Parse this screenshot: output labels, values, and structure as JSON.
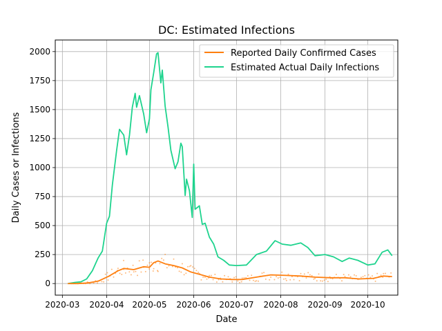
{
  "chart_data": {
    "type": "line",
    "title": "DC: Estimated Infections",
    "xlabel": "Date",
    "ylabel": "Daily Cases or Infections",
    "xlim": [
      "2020-02-25",
      "2020-10-22"
    ],
    "ylim": [
      -100,
      2100
    ],
    "x_ticks": [
      "2020-03",
      "2020-04",
      "2020-05",
      "2020-06",
      "2020-07",
      "2020-08",
      "2020-09",
      "2020-10"
    ],
    "y_ticks": [
      0,
      250,
      500,
      750,
      1000,
      1250,
      1500,
      1750,
      2000
    ],
    "grid": true,
    "legend_position": "top-right",
    "series": [
      {
        "name": "Reported Daily Confirmed Cases",
        "color": "#ff7f0e",
        "points": [
          [
            "2020-03-05",
            0
          ],
          [
            "2020-03-12",
            0
          ],
          [
            "2020-03-19",
            5
          ],
          [
            "2020-03-26",
            20
          ],
          [
            "2020-04-02",
            60
          ],
          [
            "2020-04-09",
            110
          ],
          [
            "2020-04-13",
            130
          ],
          [
            "2020-04-20",
            120
          ],
          [
            "2020-04-27",
            145
          ],
          [
            "2020-05-01",
            140
          ],
          [
            "2020-05-04",
            180
          ],
          [
            "2020-05-07",
            195
          ],
          [
            "2020-05-12",
            170
          ],
          [
            "2020-05-18",
            155
          ],
          [
            "2020-05-24",
            135
          ],
          [
            "2020-05-30",
            100
          ],
          [
            "2020-06-05",
            80
          ],
          [
            "2020-06-12",
            55
          ],
          [
            "2020-06-20",
            40
          ],
          [
            "2020-06-28",
            35
          ],
          [
            "2020-07-05",
            35
          ],
          [
            "2020-07-15",
            55
          ],
          [
            "2020-07-25",
            75
          ],
          [
            "2020-08-05",
            70
          ],
          [
            "2020-08-15",
            65
          ],
          [
            "2020-08-25",
            55
          ],
          [
            "2020-09-05",
            50
          ],
          [
            "2020-09-15",
            50
          ],
          [
            "2020-09-25",
            40
          ],
          [
            "2020-10-05",
            45
          ],
          [
            "2020-10-12",
            65
          ],
          [
            "2020-10-18",
            60
          ]
        ]
      },
      {
        "name": "Estimated Actual Daily Infections",
        "color": "#1dd38d",
        "points": [
          [
            "2020-03-05",
            0
          ],
          [
            "2020-03-10",
            10
          ],
          [
            "2020-03-14",
            15
          ],
          [
            "2020-03-18",
            40
          ],
          [
            "2020-03-22",
            110
          ],
          [
            "2020-03-26",
            220
          ],
          [
            "2020-03-29",
            280
          ],
          [
            "2020-04-01",
            520
          ],
          [
            "2020-04-03",
            580
          ],
          [
            "2020-04-05",
            850
          ],
          [
            "2020-04-08",
            1150
          ],
          [
            "2020-04-10",
            1330
          ],
          [
            "2020-04-13",
            1280
          ],
          [
            "2020-04-15",
            1110
          ],
          [
            "2020-04-17",
            1280
          ],
          [
            "2020-04-19",
            1520
          ],
          [
            "2020-04-21",
            1640
          ],
          [
            "2020-04-22",
            1520
          ],
          [
            "2020-04-24",
            1620
          ],
          [
            "2020-04-27",
            1460
          ],
          [
            "2020-04-29",
            1300
          ],
          [
            "2020-05-01",
            1420
          ],
          [
            "2020-05-02",
            1670
          ],
          [
            "2020-05-04",
            1820
          ],
          [
            "2020-05-06",
            1980
          ],
          [
            "2020-05-07",
            1990
          ],
          [
            "2020-05-09",
            1730
          ],
          [
            "2020-05-10",
            1840
          ],
          [
            "2020-05-12",
            1530
          ],
          [
            "2020-05-14",
            1350
          ],
          [
            "2020-05-16",
            1150
          ],
          [
            "2020-05-19",
            990
          ],
          [
            "2020-05-21",
            1050
          ],
          [
            "2020-05-23",
            1210
          ],
          [
            "2020-05-24",
            1180
          ],
          [
            "2020-05-26",
            760
          ],
          [
            "2020-05-27",
            900
          ],
          [
            "2020-05-29",
            800
          ],
          [
            "2020-05-31",
            570
          ],
          [
            "2020-06-01",
            1030
          ],
          [
            "2020-06-02",
            640
          ],
          [
            "2020-06-05",
            670
          ],
          [
            "2020-06-07",
            510
          ],
          [
            "2020-06-09",
            520
          ],
          [
            "2020-06-12",
            400
          ],
          [
            "2020-06-15",
            340
          ],
          [
            "2020-06-18",
            230
          ],
          [
            "2020-06-22",
            200
          ],
          [
            "2020-06-26",
            160
          ],
          [
            "2020-07-01",
            155
          ],
          [
            "2020-07-08",
            160
          ],
          [
            "2020-07-15",
            250
          ],
          [
            "2020-07-22",
            280
          ],
          [
            "2020-07-28",
            370
          ],
          [
            "2020-08-02",
            340
          ],
          [
            "2020-08-08",
            330
          ],
          [
            "2020-08-15",
            350
          ],
          [
            "2020-08-20",
            310
          ],
          [
            "2020-08-25",
            240
          ],
          [
            "2020-09-01",
            250
          ],
          [
            "2020-09-07",
            230
          ],
          [
            "2020-09-13",
            190
          ],
          [
            "2020-09-18",
            220
          ],
          [
            "2020-09-24",
            200
          ],
          [
            "2020-10-01",
            160
          ],
          [
            "2020-10-06",
            170
          ],
          [
            "2020-10-11",
            270
          ],
          [
            "2020-10-15",
            290
          ],
          [
            "2020-10-18",
            240
          ]
        ]
      }
    ]
  }
}
